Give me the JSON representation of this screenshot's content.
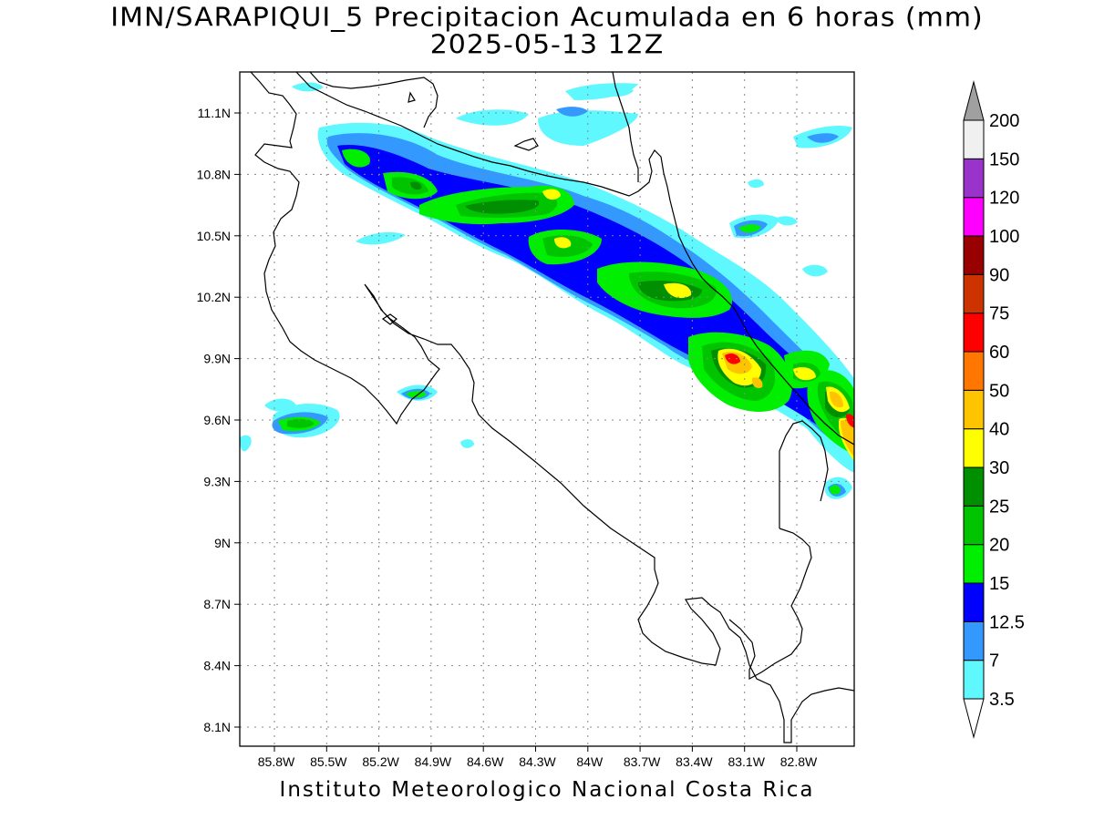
{
  "title": {
    "line1": "IMN/SARAPIQUI_5 Precipitacion Acumulada en 6 horas (mm)",
    "line2": "2025-05-13 12Z"
  },
  "footer": "Instituto Meteorologico Nacional Costa Rica",
  "map": {
    "lat_ticks": [
      "11.1N",
      "10.8N",
      "10.5N",
      "10.2N",
      "9.9N",
      "9.6N",
      "9.3N",
      "9N",
      "8.7N",
      "8.4N",
      "8.1N"
    ],
    "lon_ticks": [
      "85.8W",
      "85.5W",
      "85.2W",
      "84.9W",
      "84.6W",
      "84.3W",
      "84W",
      "83.7W",
      "83.4W",
      "83.1W",
      "82.8W"
    ],
    "grid": "dotted"
  },
  "colorbar": {
    "labels": [
      "3.5",
      "7",
      "12.5",
      "15",
      "20",
      "25",
      "30",
      "40",
      "50",
      "60",
      "75",
      "90",
      "100",
      "120",
      "150",
      "200"
    ],
    "colors": [
      "#5ff8ff",
      "#3399ff",
      "#0000ff",
      "#00ee00",
      "#00c400",
      "#008f00",
      "#ffff00",
      "#ffc400",
      "#ff7700",
      "#ff0000",
      "#cc3300",
      "#990000",
      "#ff00ff",
      "#9933cc",
      "#f0f0f0"
    ],
    "under_color": "#ffffff",
    "over_color": "#a0a0a0"
  }
}
